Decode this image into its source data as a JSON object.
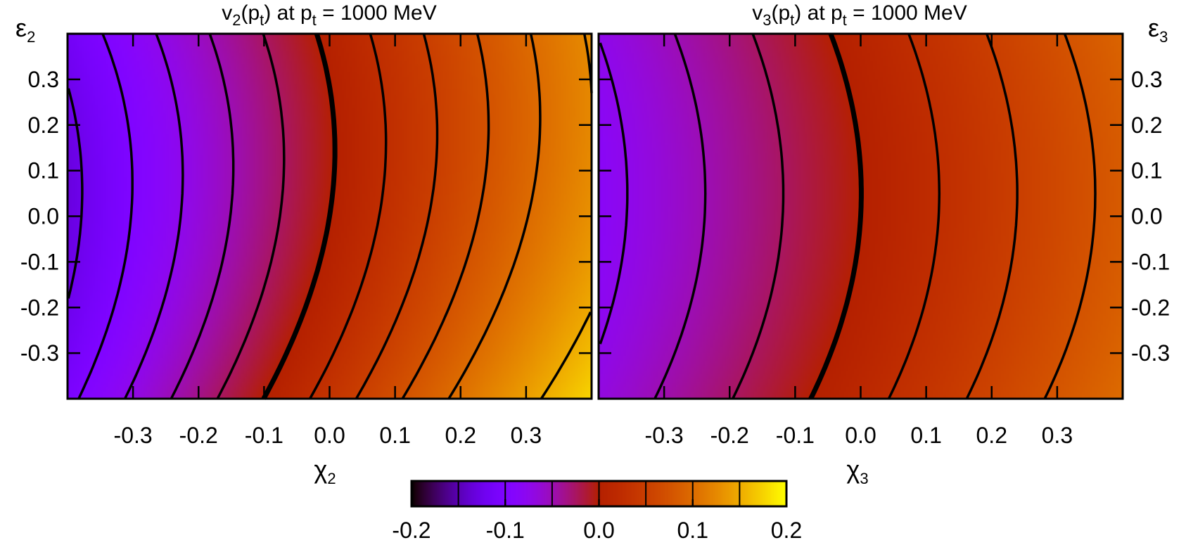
{
  "chart_data": [
    {
      "type": "heatmap",
      "title": "v₂(pₜ) at pₜ = 1000 MeV",
      "title_parts": {
        "v": "v",
        "n": "2",
        "p": "p",
        "t": "t",
        "rest": " at p",
        "eq": " = 1000 MeV"
      },
      "xlabel": "χ₂",
      "xlabel_parts": {
        "main": "χ",
        "sub": "2"
      },
      "ylabel": "ε₂",
      "ylabel_parts": {
        "main": "ε",
        "sub": "2"
      },
      "xlim": [
        -0.4,
        0.4
      ],
      "ylim": [
        -0.4,
        0.4
      ],
      "xticks": [
        "-0.3",
        "-0.2",
        "-0.1",
        "0.0",
        "0.1",
        "0.2",
        "0.3"
      ],
      "yticks": [
        "0.3",
        "0.2",
        "0.1",
        "0.0",
        "-0.1",
        "-0.2",
        "-0.3"
      ],
      "ytick_side": "left",
      "value_model": {
        "description_note": "approximate field v = a*x + b*y + c*x*y + d*y^2",
        "a": 0.33,
        "b": -0.037,
        "c": -0.06,
        "d": 0.13
      },
      "contour_levels": [
        -0.125,
        -0.1,
        -0.075,
        -0.05,
        -0.025,
        0.0,
        0.025,
        0.05,
        0.075,
        0.1,
        0.125,
        0.15
      ],
      "zero_contour_emphasized": true
    },
    {
      "type": "heatmap",
      "title": "v₃(pₜ) at pₜ = 1000 MeV",
      "title_parts": {
        "v": "v",
        "n": "3",
        "p": "p",
        "t": "t",
        "rest": " at p",
        "eq": " = 1000 MeV"
      },
      "xlabel": "χ₃",
      "xlabel_parts": {
        "main": "χ",
        "sub": "3"
      },
      "ylabel": "ε₃",
      "ylabel_parts": {
        "main": "ε",
        "sub": "3"
      },
      "xlim": [
        -0.4,
        0.4
      ],
      "ylim": [
        -0.4,
        0.4
      ],
      "xticks": [
        "-0.3",
        "-0.2",
        "-0.1",
        "0.0",
        "0.1",
        "0.2",
        "0.3"
      ],
      "yticks": [
        "0.3",
        "0.2",
        "0.1",
        "0.0",
        "-0.1",
        "-0.2",
        "-0.3"
      ],
      "ytick_side": "right",
      "value_model": {
        "a": 0.21,
        "b": -0.008,
        "c": 0.0,
        "d": 0.08
      },
      "contour_levels": [
        -0.075,
        -0.05,
        -0.025,
        0.0,
        0.025,
        0.05,
        0.075,
        0.1,
        0.125
      ],
      "zero_contour_emphasized": true
    }
  ],
  "colorbar": {
    "range": [
      -0.2,
      0.2
    ],
    "ticks": [
      "-0.2",
      "-0.1",
      "0.0",
      "0.1",
      "0.2"
    ],
    "divisions": [
      -0.15,
      -0.1,
      -0.05,
      0.0,
      0.05,
      0.1,
      0.15
    ],
    "colormap": "gnuplot-pm3d",
    "colors": {
      "low": "#000000",
      "mid": "#d03000",
      "high": "#ffff00"
    }
  }
}
